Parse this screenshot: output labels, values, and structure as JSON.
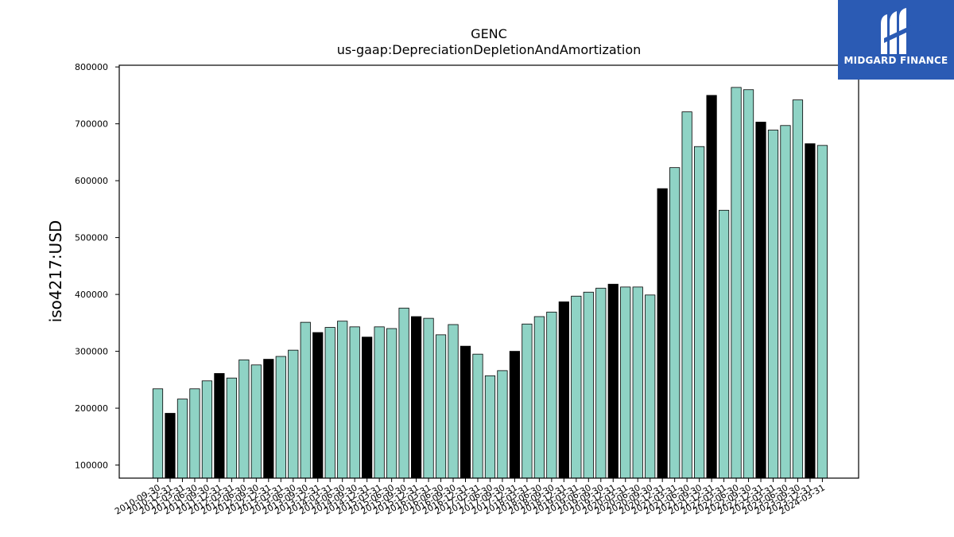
{
  "logo": {
    "text": "MIDGARD FINANCE",
    "icon": "midgard-logo-icon",
    "background": "#2b5bb4"
  },
  "chart_data": {
    "type": "bar",
    "title": "GENC",
    "subtitle": "us-gaap:DepreciationDepletionAndAmortization",
    "xlabel": "",
    "ylabel": "iso4217:USD",
    "ylim": [
      77000,
      803000
    ],
    "yticks": [
      100000,
      200000,
      300000,
      400000,
      500000,
      600000,
      700000,
      800000
    ],
    "grid": false,
    "colors": {
      "regular": "#8fd3c5",
      "highlight": "#000000",
      "edge": "#000000"
    },
    "categories": [
      "2010-09-30",
      "2010-12-31",
      "2011-03-31",
      "2011-06-30",
      "2011-09-30",
      "2011-12-31",
      "2012-03-31",
      "2012-06-30",
      "2012-09-30",
      "2012-12-31",
      "2013-03-31",
      "2013-06-30",
      "2013-09-30",
      "2013-12-31",
      "2014-03-31",
      "2014-06-30",
      "2014-09-30",
      "2014-12-31",
      "2015-03-31",
      "2015-06-30",
      "2015-09-30",
      "2015-12-31",
      "2016-03-31",
      "2016-06-30",
      "2016-09-30",
      "2016-12-31",
      "2017-03-31",
      "2017-06-30",
      "2017-09-30",
      "2017-12-31",
      "2018-03-31",
      "2018-06-30",
      "2018-09-30",
      "2018-12-31",
      "2019-03-31",
      "2019-06-30",
      "2019-09-30",
      "2019-12-31",
      "2020-03-31",
      "2020-06-30",
      "2020-09-30",
      "2020-12-31",
      "2021-03-31",
      "2021-06-30",
      "2021-09-30",
      "2021-12-31",
      "2022-03-31",
      "2022-06-30",
      "2022-09-30",
      "2022-12-31",
      "2023-03-31",
      "2023-06-30",
      "2023-09-30",
      "2023-12-31",
      "2024-03-31"
    ],
    "values": [
      234000,
      191000,
      216000,
      234000,
      248000,
      261000,
      253000,
      285000,
      276000,
      286000,
      291000,
      302000,
      351000,
      333000,
      342000,
      353000,
      343000,
      325000,
      343000,
      340000,
      376000,
      361000,
      358000,
      329000,
      347000,
      309000,
      295000,
      257000,
      266000,
      300000,
      348000,
      361000,
      369000,
      387000,
      397000,
      404000,
      411000,
      418000,
      413000,
      413000,
      399000,
      586000,
      623000,
      721000,
      660000,
      750000,
      548000,
      764000,
      760000,
      703000,
      689000,
      697000,
      742000,
      665000,
      662000
    ],
    "highlight": [
      false,
      true,
      false,
      false,
      false,
      true,
      false,
      false,
      false,
      true,
      false,
      false,
      false,
      true,
      false,
      false,
      false,
      true,
      false,
      false,
      false,
      true,
      false,
      false,
      false,
      true,
      false,
      false,
      false,
      true,
      false,
      false,
      false,
      true,
      false,
      false,
      false,
      true,
      false,
      false,
      false,
      true,
      false,
      false,
      false,
      true,
      false,
      false,
      false,
      true,
      false,
      false,
      false,
      true,
      false
    ]
  }
}
